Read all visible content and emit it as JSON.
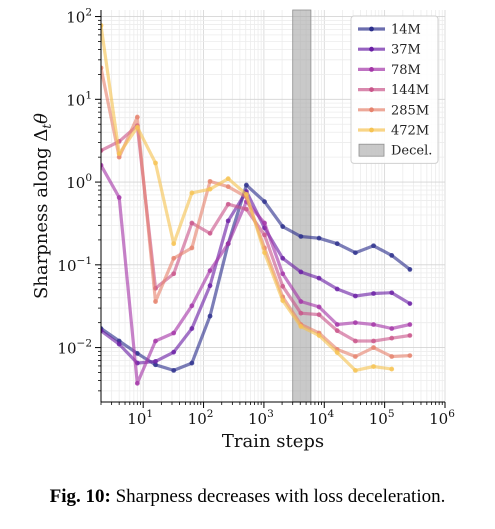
{
  "chart_data": {
    "type": "line",
    "xlabel": "Train steps",
    "ylabel": "Sharpness along Δ",
    "ylabel_sub": "t",
    "ylabel_var": "θ",
    "xscale": "log",
    "yscale": "log",
    "xlim": [
      2,
      1000000
    ],
    "ylim": [
      0.0022,
      120
    ],
    "x_ticks": [
      {
        "value": 10,
        "base": "10",
        "exp": "1"
      },
      {
        "value": 100,
        "base": "10",
        "exp": "2"
      },
      {
        "value": 1000,
        "base": "10",
        "exp": "3"
      },
      {
        "value": 10000,
        "base": "10",
        "exp": "4"
      },
      {
        "value": 100000,
        "base": "10",
        "exp": "5"
      },
      {
        "value": 1000000,
        "base": "10",
        "exp": "6"
      }
    ],
    "y_ticks": [
      {
        "value": 0.01,
        "base": "10",
        "exp": "−2"
      },
      {
        "value": 0.1,
        "base": "10",
        "exp": "−1"
      },
      {
        "value": 1,
        "base": "10",
        "exp": "0"
      },
      {
        "value": 10,
        "base": "10",
        "exp": "1"
      },
      {
        "value": 100,
        "base": "10",
        "exp": "2"
      }
    ],
    "grid": true,
    "legend_position": "top-right",
    "shaded_region": {
      "label": "Decel.",
      "x_range": [
        3000,
        6000
      ],
      "color": "#a8a8a8"
    },
    "series": [
      {
        "name": "14M",
        "color": "#2c2f8c",
        "x": [
          2,
          4,
          8,
          16,
          32,
          64,
          128,
          256,
          512,
          1024,
          2048,
          4096,
          8192,
          16384,
          32768,
          65536,
          131072,
          262144
        ],
        "y": [
          0.017,
          0.012,
          0.0085,
          0.0062,
          0.0053,
          0.0065,
          0.024,
          0.18,
          0.92,
          0.58,
          0.29,
          0.22,
          0.21,
          0.18,
          0.14,
          0.17,
          0.13,
          0.088
        ]
      },
      {
        "name": "37M",
        "color": "#6a1fa5",
        "x": [
          2,
          4,
          8,
          16,
          32,
          64,
          128,
          256,
          512,
          1024,
          2048,
          4096,
          8192,
          16384,
          32768,
          65536,
          131072,
          262144
        ],
        "y": [
          0.016,
          0.011,
          0.0065,
          0.0068,
          0.0088,
          0.017,
          0.056,
          0.34,
          0.77,
          0.28,
          0.12,
          0.082,
          0.069,
          0.051,
          0.042,
          0.045,
          0.046,
          0.034
        ]
      },
      {
        "name": "78M",
        "color": "#a436a8",
        "x": [
          2,
          4,
          8,
          16,
          32,
          64,
          128,
          256,
          512,
          1024,
          2048,
          4096,
          8192,
          16384,
          32768,
          65536,
          131072,
          262144
        ],
        "y": [
          1.6,
          0.65,
          0.0037,
          0.012,
          0.015,
          0.032,
          0.085,
          0.18,
          0.58,
          0.32,
          0.078,
          0.036,
          0.031,
          0.019,
          0.02,
          0.019,
          0.017,
          0.019
        ]
      },
      {
        "name": "144M",
        "color": "#c9558a",
        "x": [
          2,
          4,
          8,
          16,
          32,
          64,
          128,
          256,
          512,
          1024,
          2048,
          4096,
          8192,
          16384,
          32768,
          65536,
          131072,
          262144
        ],
        "y": [
          2.4,
          3.1,
          4.8,
          0.052,
          0.078,
          0.32,
          0.24,
          0.54,
          0.47,
          0.23,
          0.055,
          0.026,
          0.025,
          0.016,
          0.012,
          0.012,
          0.013,
          0.014
        ]
      },
      {
        "name": "285M",
        "color": "#e6836e",
        "x": [
          2,
          4,
          8,
          16,
          32,
          64,
          128,
          256,
          512,
          1024,
          2048,
          4096,
          8192,
          16384,
          32768,
          65536,
          131072,
          262144
        ],
        "y": [
          24,
          2.0,
          6.1,
          0.036,
          0.12,
          0.16,
          1.02,
          0.88,
          0.66,
          0.16,
          0.041,
          0.019,
          0.015,
          0.0095,
          0.0078,
          0.01,
          0.0078,
          0.008
        ]
      },
      {
        "name": "472M",
        "color": "#f6c353",
        "x": [
          2,
          4,
          8,
          16,
          32,
          64,
          128,
          256,
          512,
          1024,
          2048,
          4096,
          8192,
          16384,
          32768,
          65536,
          131072
        ],
        "y": [
          78,
          2.2,
          4.6,
          1.7,
          0.18,
          0.74,
          0.82,
          1.1,
          0.71,
          0.14,
          0.037,
          0.018,
          0.014,
          0.0087,
          0.0053,
          0.0059,
          0.0055
        ]
      }
    ]
  },
  "caption": {
    "label": "Fig. 10:",
    "text": " Sharpness decreases with loss deceleration."
  }
}
